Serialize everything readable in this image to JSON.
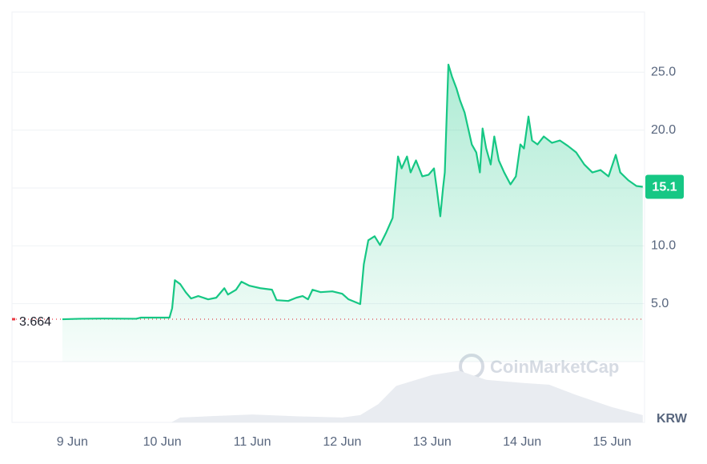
{
  "chart_data": {
    "type": "line",
    "xlim": [
      8.33,
      15.36
    ],
    "xticks": [
      {
        "value": 9,
        "label": "9 Jun"
      },
      {
        "value": 10,
        "label": "10 Jun"
      },
      {
        "value": 11,
        "label": "11 Jun"
      },
      {
        "value": 12,
        "label": "12 Jun"
      },
      {
        "value": 13,
        "label": "13 Jun"
      },
      {
        "value": 14,
        "label": "14 Jun"
      },
      {
        "value": 15,
        "label": "15 Jun"
      }
    ],
    "ylim": [
      0,
      30.2
    ],
    "yticks": [
      {
        "value": 5,
        "label": "5.0"
      },
      {
        "value": 10,
        "label": "10.0"
      },
      {
        "value": 15,
        "label": "15.0"
      },
      {
        "value": 20,
        "label": "20.0"
      },
      {
        "value": 25,
        "label": "25.0"
      }
    ],
    "grid": true,
    "series": [
      {
        "color": "#16c784",
        "x": [
          8.89,
          9.09,
          9.36,
          9.71,
          9.76,
          10.08,
          10.11,
          10.14,
          10.2,
          10.26,
          10.32,
          10.4,
          10.51,
          10.6,
          10.69,
          10.73,
          10.82,
          10.88,
          10.97,
          11.09,
          11.22,
          11.27,
          11.4,
          11.49,
          11.56,
          11.62,
          11.67,
          11.76,
          11.89,
          12.0,
          12.07,
          12.2,
          12.24,
          12.29,
          12.36,
          12.42,
          12.49,
          12.56,
          12.6,
          12.62,
          12.66,
          12.72,
          12.76,
          12.82,
          12.89,
          12.96,
          13.02,
          13.05,
          13.09,
          13.12,
          13.14,
          13.18,
          13.22,
          13.27,
          13.31,
          13.36,
          13.4,
          13.44,
          13.49,
          13.53,
          13.56,
          13.6,
          13.65,
          13.69,
          13.74,
          13.8,
          13.87,
          13.93,
          13.98,
          14.02,
          14.07,
          14.11,
          14.17,
          14.24,
          14.33,
          14.42,
          14.51,
          14.6,
          14.69,
          14.78,
          14.87,
          14.96,
          15.04,
          15.09,
          15.18,
          15.27,
          15.34
        ],
        "values": [
          3.66,
          3.7,
          3.72,
          3.7,
          3.8,
          3.8,
          4.62,
          7.03,
          6.69,
          6.0,
          5.45,
          5.66,
          5.38,
          5.52,
          6.34,
          5.79,
          6.21,
          6.9,
          6.55,
          6.34,
          6.21,
          5.31,
          5.24,
          5.52,
          5.66,
          5.38,
          6.21,
          6.0,
          6.07,
          5.86,
          5.38,
          4.97,
          8.41,
          10.48,
          10.83,
          10.07,
          11.17,
          12.41,
          16.0,
          17.72,
          16.69,
          17.72,
          16.34,
          17.38,
          16.0,
          16.14,
          16.69,
          14.97,
          12.55,
          14.97,
          16.34,
          25.66,
          24.62,
          23.59,
          22.55,
          21.52,
          20.14,
          18.76,
          18.07,
          16.34,
          20.14,
          18.41,
          17.03,
          19.45,
          17.38,
          16.34,
          15.31,
          16.0,
          18.76,
          18.41,
          21.17,
          19.1,
          18.76,
          19.45,
          18.9,
          19.1,
          18.62,
          18.07,
          17.03,
          16.34,
          16.55,
          16.0,
          17.86,
          16.34,
          15.66,
          15.17,
          15.1
        ]
      }
    ],
    "volume": {
      "color": "#e9ecf1",
      "ylim": [
        0,
        100
      ],
      "x": [
        10.1,
        10.2,
        10.5,
        11.0,
        11.5,
        12.0,
        12.2,
        12.4,
        12.6,
        13.0,
        13.3,
        13.6,
        14.0,
        14.3,
        14.6,
        15.0,
        15.34
      ],
      "values": [
        0,
        8,
        10,
        13,
        10,
        8,
        12,
        30,
        60,
        78,
        85,
        70,
        65,
        62,
        45,
        25,
        12
      ]
    },
    "open_price": 3.664,
    "current_price": 15.1,
    "currency": "KRW",
    "watermark": "CoinMarketCap"
  }
}
